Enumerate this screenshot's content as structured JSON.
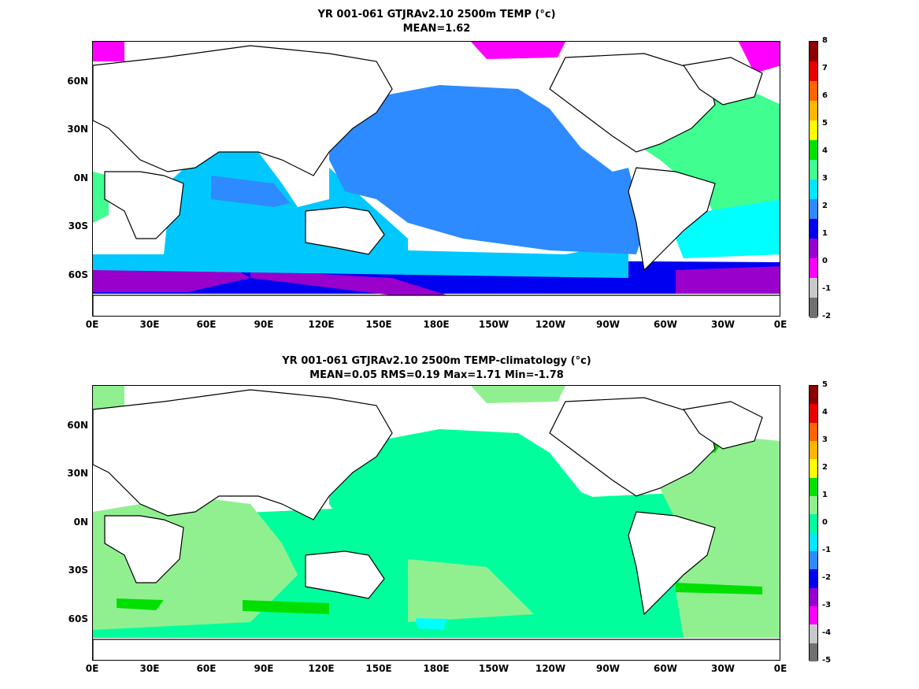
{
  "panels": [
    {
      "title_line1": "YR 001-061 GTJRAv2.10 2500m TEMP (°c)",
      "title_line2": "MEAN=1.62",
      "colorbar_ticks": [
        "8",
        "7",
        "6",
        "5",
        "4",
        "3",
        "2",
        "1",
        "0",
        "-1",
        "-2"
      ],
      "colorbar_colors": [
        "#8b0000",
        "#e60000",
        "#ff6400",
        "#ffb400",
        "#ffff00",
        "#00e000",
        "#40ff90",
        "#00e6ff",
        "#2e8bff",
        "#0000f0",
        "#9900cc",
        "#ff00ff",
        "#c8c8c8",
        "#707070"
      ]
    },
    {
      "title_line1": "YR 001-061 GTJRAv2.10 2500m TEMP-climatology (°c)",
      "title_line2": "MEAN=0.05   RMS=0.19   Max=1.71   Min=-1.78",
      "colorbar_ticks": [
        "5",
        "4",
        "3",
        "2",
        "1",
        "0",
        "-1",
        "-2",
        "-3",
        "-4",
        "-5"
      ],
      "colorbar_colors": [
        "#8b0000",
        "#e60000",
        "#ff6400",
        "#ffb400",
        "#ffff00",
        "#00e000",
        "#90f090",
        "#00ff9c",
        "#00e6ff",
        "#2e8bff",
        "#0000f0",
        "#9900cc",
        "#ff00ff",
        "#c8c8c8",
        "#707070"
      ]
    }
  ],
  "lat_labels": [
    "60N",
    "30N",
    "0N",
    "30S",
    "60S"
  ],
  "lon_labels": [
    "0E",
    "30E",
    "60E",
    "90E",
    "120E",
    "150E",
    "180E",
    "150W",
    "120W",
    "90W",
    "60W",
    "30W",
    "0E"
  ],
  "field_colors": {
    "land": "#ffffff",
    "top_pacific": "#2e8bff",
    "top_indian": "#00c8ff",
    "top_atlantic": "#40ff90",
    "top_south_atlantic": "#00ffff",
    "top_southern": "#0000f0",
    "top_antarctic": "#9900cc",
    "top_arctic": "#ff00ff",
    "bot_base": "#00ff9c",
    "bot_light": "#90f090",
    "bot_green": "#00e000",
    "bot_yellow": "#ffff00",
    "bot_cyan": "#00ffff"
  }
}
